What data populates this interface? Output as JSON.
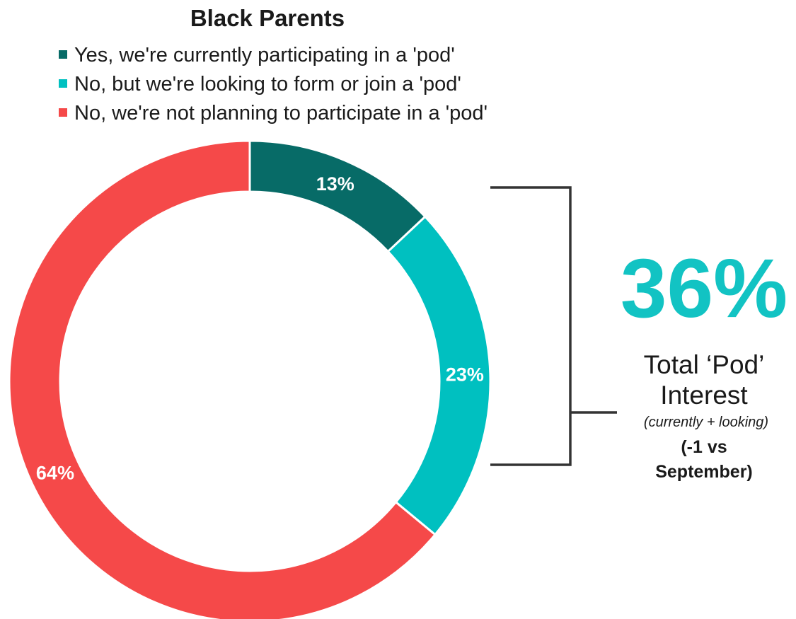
{
  "chart_data": {
    "type": "pie",
    "donut": true,
    "title": "Black Parents",
    "legend_position": "top",
    "series": [
      {
        "name": "Yes, we're currently participating in a 'pod'",
        "value": 13,
        "label": "13%",
        "color": "#076b67"
      },
      {
        "name": "No, but we're looking to form or join a 'pod'",
        "value": 23,
        "label": "23%",
        "color": "#00c0c0"
      },
      {
        "name": "No, we're not planning to participate in a 'pod'",
        "value": 64,
        "label": "64%",
        "color": "#f54949"
      }
    ]
  },
  "callout": {
    "value": "36%",
    "value_color": "#12c3c3",
    "line1": "Total ‘Pod’",
    "line2": "Interest",
    "note": "(currently + looking)",
    "change_line1": "(-1 vs",
    "change_line2": "September)"
  }
}
